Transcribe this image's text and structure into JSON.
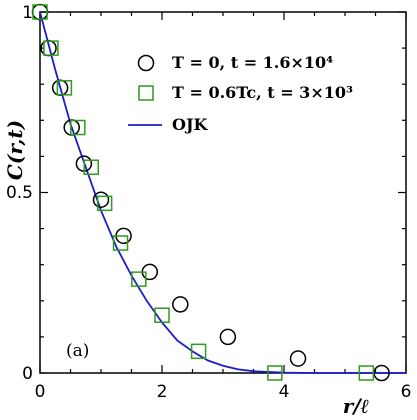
{
  "chart_data": {
    "type": "scatter",
    "title": "",
    "xlabel": "r/ℓ",
    "ylabel": "C(r,t)",
    "xlim": [
      0,
      6
    ],
    "ylim": [
      0,
      1
    ],
    "x_ticks": [
      "0",
      "2",
      "4",
      "6"
    ],
    "y_ticks": [
      "0",
      "0.5",
      "1"
    ],
    "panel_label": "(a)",
    "grid": false,
    "legend_position": "top-right",
    "series": [
      {
        "name": "T = 0, t = 1.6×10⁴",
        "marker": "circle",
        "color": "#000000",
        "x": [
          0.0,
          0.14,
          0.33,
          0.52,
          0.72,
          1.0,
          1.37,
          1.8,
          2.3,
          3.08,
          4.23,
          5.6
        ],
        "y": [
          1.0,
          0.9,
          0.79,
          0.68,
          0.58,
          0.48,
          0.38,
          0.28,
          0.19,
          0.1,
          0.04,
          0.0
        ]
      },
      {
        "name": "T = 0.6Tc, t = 3×10³",
        "marker": "square",
        "color": "#2e9a1e",
        "x": [
          0.0,
          0.18,
          0.4,
          0.62,
          0.84,
          1.06,
          1.32,
          1.62,
          2.0,
          2.6,
          3.85,
          5.35
        ],
        "y": [
          1.0,
          0.9,
          0.79,
          0.68,
          0.57,
          0.47,
          0.36,
          0.26,
          0.16,
          0.06,
          0.0,
          0.0
        ]
      },
      {
        "name": "OJK",
        "type": "line",
        "color": "#1c1ccc",
        "x": [
          0,
          0.25,
          0.5,
          0.75,
          1.0,
          1.25,
          1.5,
          1.75,
          2.0,
          2.25,
          2.5,
          2.75,
          3.0,
          3.25,
          3.5,
          4.0,
          4.5,
          5.0,
          5.5,
          6.0
        ],
        "y": [
          1.0,
          0.84,
          0.69,
          0.57,
          0.45,
          0.35,
          0.27,
          0.2,
          0.14,
          0.09,
          0.06,
          0.035,
          0.02,
          0.01,
          0.005,
          0.001,
          0.0,
          0.0,
          0.0,
          0.0
        ]
      }
    ]
  }
}
